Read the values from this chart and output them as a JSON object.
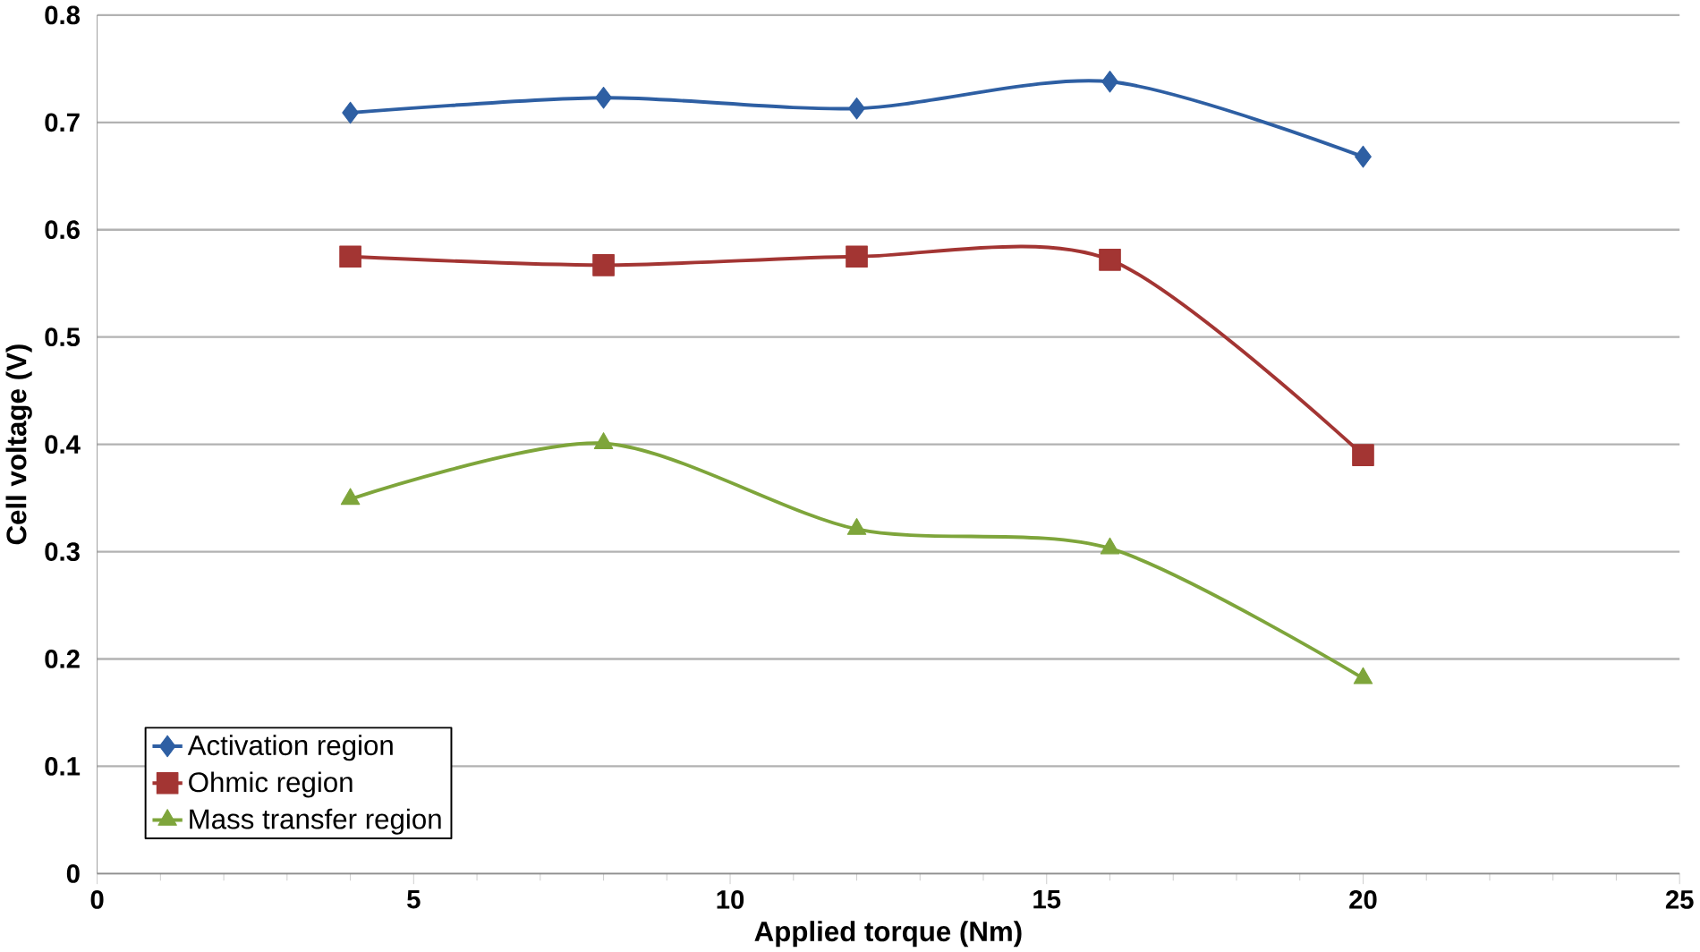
{
  "chart_data": {
    "type": "line",
    "xlabel": "Applied torque (Nm)",
    "ylabel": "Cell voltage (V)",
    "x": [
      4,
      8,
      12,
      16,
      20
    ],
    "series": [
      {
        "name": "Activation region",
        "color": "#2e5fa3",
        "marker": "diamond",
        "values": [
          0.709,
          0.723,
          0.713,
          0.738,
          0.668
        ]
      },
      {
        "name": "Ohmic region",
        "color": "#a33533",
        "marker": "square",
        "values": [
          0.575,
          0.567,
          0.575,
          0.572,
          0.39
        ]
      },
      {
        "name": "Mass transfer region",
        "color": "#7ea53b",
        "marker": "triangle",
        "values": [
          0.349,
          0.401,
          0.321,
          0.303,
          0.182
        ]
      }
    ],
    "xlim": [
      0,
      25
    ],
    "xticks": [
      0,
      5,
      10,
      15,
      20,
      25
    ],
    "ylim": [
      0,
      0.8
    ],
    "yticks": [
      0,
      0.1,
      0.2,
      0.3,
      0.4,
      0.5,
      0.6,
      0.7,
      0.8
    ],
    "grid": "y",
    "legend": "bottom left"
  }
}
